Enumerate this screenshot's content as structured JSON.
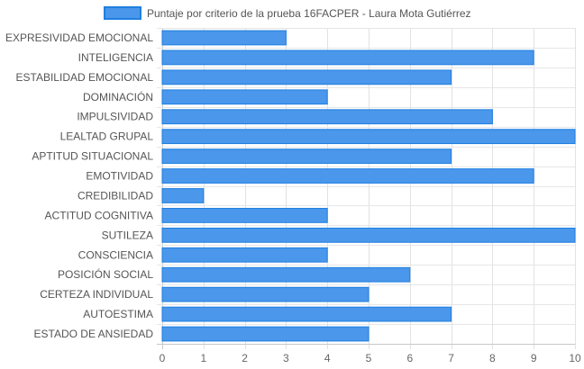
{
  "chart_data": {
    "type": "bar",
    "orientation": "horizontal",
    "categories": [
      "EXPRESIVIDAD EMOCIONAL",
      "INTELIGENCIA",
      "ESTABILIDAD EMOCIONAL",
      "DOMINACIÓN",
      "IMPULSIVIDAD",
      "LEALTAD GRUPAL",
      "APTITUD SITUACIONAL",
      "EMOTIVIDAD",
      "CREDIBILIDAD",
      "ACTITUD COGNITIVA",
      "SUTILEZA",
      "CONSCIENCIA",
      "POSICIÓN SOCIAL",
      "CERTEZA INDIVIDUAL",
      "AUTOESTIMA",
      "ESTADO DE ANSIEDAD"
    ],
    "series": [
      {
        "name": "Puntaje por criterio de la prueba 16FACPER - Laura Mota Gutiérrez",
        "values": [
          3,
          9,
          7,
          4,
          8,
          10,
          7,
          9,
          1,
          4,
          10,
          4,
          6,
          5,
          7,
          5
        ],
        "color": "#4a97eb",
        "border_color": "#1f7fe0"
      }
    ],
    "xlim": [
      0,
      10
    ],
    "x_ticks": [
      "0",
      "1",
      "2",
      "3",
      "4",
      "5",
      "6",
      "7",
      "8",
      "9",
      "10"
    ],
    "grid": true,
    "legend": "top"
  }
}
